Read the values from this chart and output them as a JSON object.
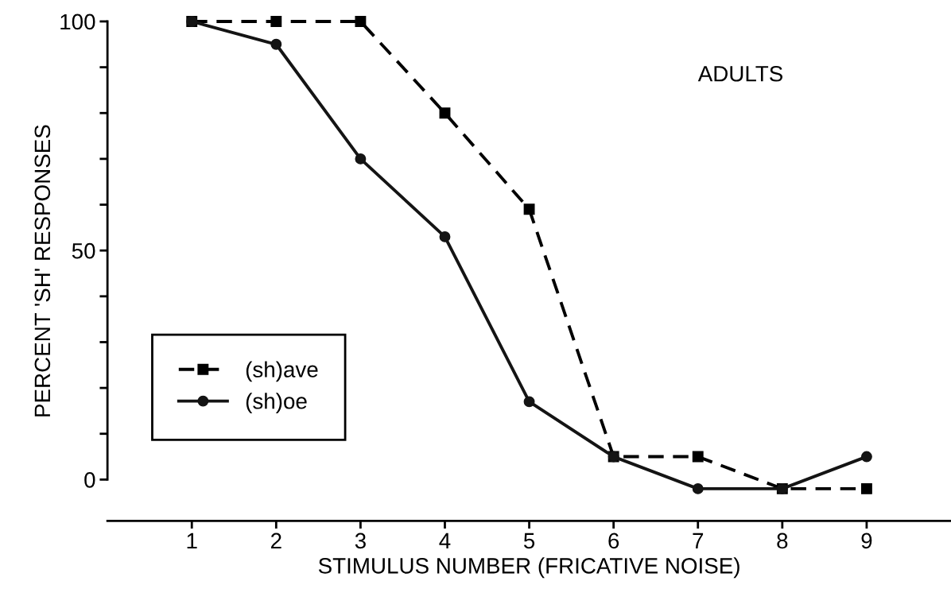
{
  "chart_data": {
    "type": "line",
    "xlabel": "STIMULUS NUMBER (FRICATIVE NOISE)",
    "ylabel": "PERCENT 'SH' RESPONSES",
    "annotations": [
      "ADULTS"
    ],
    "x": [
      1,
      2,
      3,
      4,
      5,
      6,
      7,
      8,
      9
    ],
    "series": [
      {
        "name": "(sh)ave",
        "color": "#000000",
        "marker": "square",
        "line_style": "dashed",
        "values": [
          100,
          100,
          100,
          80,
          59,
          5,
          5,
          -2,
          -2
        ]
      },
      {
        "name": "(sh)oe",
        "color": "#141414",
        "marker": "circle",
        "line_style": "solid",
        "values": [
          100,
          95,
          70,
          53,
          17,
          5,
          -2,
          -2,
          5
        ]
      }
    ],
    "xlim": [
      0,
      10
    ],
    "xticks": [
      1,
      2,
      3,
      4,
      5,
      6,
      7,
      8,
      9
    ],
    "ylim": [
      -9,
      100
    ],
    "yticks": [
      0,
      {
        "value": 10,
        "label": null
      },
      {
        "value": 20,
        "label": null
      },
      {
        "value": 30,
        "label": null
      },
      {
        "value": 40,
        "label": null
      },
      50,
      {
        "value": 60,
        "label": null
      },
      {
        "value": 70,
        "label": null
      },
      {
        "value": 80,
        "label": null
      },
      {
        "value": 90,
        "label": null
      },
      100
    ],
    "grid": false,
    "legend": "lower left"
  }
}
